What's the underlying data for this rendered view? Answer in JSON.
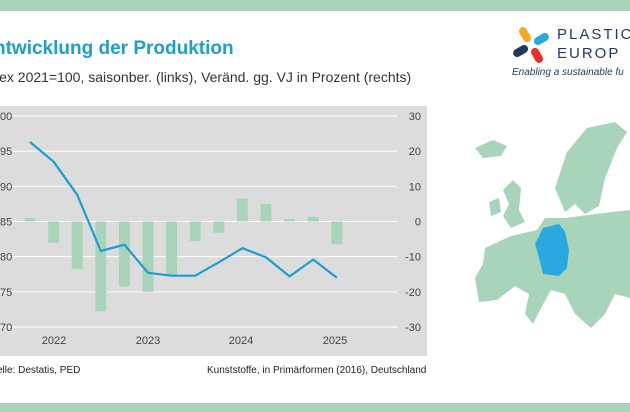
{
  "header": {
    "title": "ntwicklung der Produktion",
    "subtitle": "lex 2021=100, saisonber. (links), Veränd. gg. VJ in Prozent (rechts)"
  },
  "brand": {
    "name_line1": "PLASTIC",
    "name_line2": "EUROP",
    "tagline": "Enabling a sustainable fu",
    "colors": [
      "#f7a823",
      "#e6332a",
      "#2aa9e0",
      "#1e3a5f"
    ]
  },
  "footer": {
    "source": "elle: Destatis, PED",
    "note": "Kunststoffe, in Primärformen (2016), Deutschland"
  },
  "chart_data": {
    "type": "bar+line",
    "background": "#dcdcdc",
    "grid": true,
    "x_labels": [
      "2022",
      "2023",
      "2024",
      "2025"
    ],
    "left_axis": {
      "ticks": [
        "00",
        "95",
        "90",
        "85",
        "80",
        "75",
        "70"
      ],
      "ylim": [
        70,
        100
      ]
    },
    "right_axis": {
      "ticks": [
        "30",
        "20",
        "10",
        "0",
        "-10",
        "-20",
        "-30"
      ],
      "ylim": [
        -30,
        30
      ]
    },
    "series": [
      {
        "kind": "bar",
        "axis": "right",
        "color": "#a8d5b9",
        "values": [
          1,
          -6,
          -13.5,
          -25.5,
          -18.5,
          -20,
          -15.5,
          -5.5,
          -3.2,
          6.5,
          5,
          0.7,
          1.3,
          -6.5
        ]
      },
      {
        "kind": "line",
        "axis": "left",
        "color": "#1a9fcf",
        "values": [
          96.3,
          93.5,
          88.8,
          80.8,
          81.7,
          77.7,
          77.3,
          77.3,
          79.2,
          81.2,
          79.9,
          77.2,
          79.6,
          77
        ]
      }
    ]
  }
}
